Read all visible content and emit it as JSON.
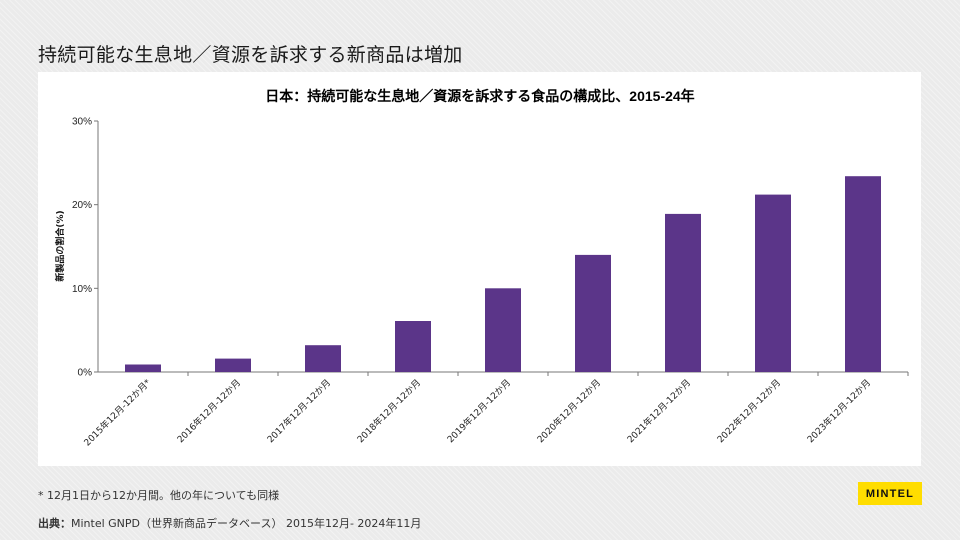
{
  "slide": {
    "title": "持続可能な生息地／資源を訴求する新商品は増加",
    "footnote": "*  12月1日から12か月間。他の年についても同様",
    "source_label": "出典：",
    "source_text": "Mintel GNPD（世界新商品データベース） 2015年12月- 2024年11月",
    "logo": "MINTEL"
  },
  "colors": {
    "bar": "#5b3589",
    "axis": "#777777"
  },
  "chart_data": {
    "type": "bar",
    "title": "日本：持続可能な生息地／資源を訴求する食品の構成比、2015-24年",
    "xlabel": "",
    "ylabel": "新製品の割合(%)",
    "ylim": [
      0,
      30
    ],
    "yticks": [
      0,
      10,
      20,
      30
    ],
    "ytick_labels": [
      "0%",
      "10%",
      "20%",
      "30%"
    ],
    "categories": [
      "2015年12月-12か月*",
      "2016年12月-12か月",
      "2017年12月-12か月",
      "2018年12月-12か月",
      "2019年12月-12か月",
      "2020年12月-12か月",
      "2021年12月-12か月",
      "2022年12月-12か月",
      "2023年12月-12か月"
    ],
    "values": [
      0.9,
      1.6,
      3.2,
      6.1,
      10.0,
      14.0,
      18.9,
      21.2,
      23.4
    ]
  }
}
